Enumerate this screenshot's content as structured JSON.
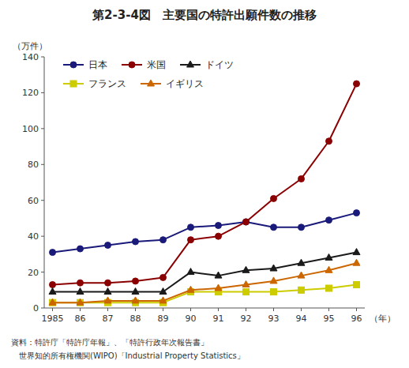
{
  "chart_data": {
    "type": "line",
    "title": "第2-3-4図　主要国の特許出願件数の推移",
    "y_label": "（万件）",
    "x_label": "（年）",
    "annotations": [
      "資料：特許庁「特許庁年報」、「特許行政年次報告書」",
      "　世界知的所有権機関(WIPO)「Industrial Property Statistics」"
    ],
    "categories": [
      "1985",
      "86",
      "87",
      "88",
      "89",
      "90",
      "91",
      "92",
      "93",
      "94",
      "95",
      "96"
    ],
    "series": [
      {
        "name": "日本",
        "color": "#1a1a7a",
        "marker": "circle",
        "values": [
          31,
          33,
          35,
          37,
          38,
          45,
          46,
          48,
          45,
          45,
          49,
          53
        ]
      },
      {
        "name": "米国",
        "color": "#8b0000",
        "marker": "circle",
        "values": [
          13,
          14,
          14,
          15,
          17,
          38,
          40,
          48,
          61,
          72,
          93,
          125
        ]
      },
      {
        "name": "ドイツ",
        "color": "#1a1a1a",
        "marker": "triangle",
        "values": [
          9,
          9,
          9,
          9,
          9,
          20,
          18,
          21,
          22,
          25,
          28,
          31
        ]
      },
      {
        "name": "フランス",
        "color": "#cccc00",
        "marker": "square",
        "values": [
          3,
          3,
          3,
          3,
          3,
          9,
          9,
          9,
          9,
          10,
          11,
          13
        ]
      },
      {
        "name": "イギリス",
        "color": "#cc6600",
        "marker": "triangle",
        "values": [
          3,
          3,
          4,
          4,
          4,
          10,
          11,
          13,
          15,
          18,
          21,
          25
        ]
      }
    ],
    "ylim": [
      0,
      140
    ],
    "yticks": [
      0,
      20,
      40,
      60,
      80,
      100,
      120,
      140
    ],
    "grid": false,
    "legend": "upper left"
  }
}
